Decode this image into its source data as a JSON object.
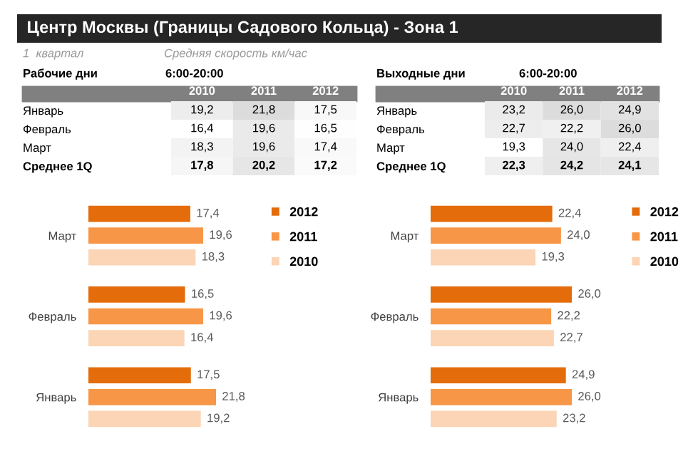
{
  "chart_data": [
    {
      "type": "other",
      "title": "Центр Москвы (Границы Садового Кольца) - Зона 1",
      "annotations": [
        "1  квартал",
        "Средняя скорость км/час"
      ]
    },
    {
      "type": "heatmap",
      "title": "Рабочие дни",
      "subtitle": "6:00-20:00",
      "categories": [
        "2010",
        "2011",
        "2012"
      ],
      "y_categories": [
        "Январь",
        "Февраль",
        "Март",
        "Среднее 1Q"
      ],
      "cells": [
        [
          19.2,
          21.8,
          17.5
        ],
        [
          16.4,
          19.6,
          16.5
        ],
        [
          18.3,
          19.6,
          17.4
        ],
        [
          17.8,
          20.2,
          17.2
        ]
      ],
      "cell_labels": [
        [
          "19,2",
          "21,8",
          "17,5"
        ],
        [
          "16,4",
          "19,6",
          "16,5"
        ],
        [
          "18,3",
          "19,6",
          "17,4"
        ],
        [
          "17,8",
          "20,2",
          "17,2"
        ]
      ]
    },
    {
      "type": "heatmap",
      "title": "Выходные дни",
      "subtitle": "6:00-20:00",
      "categories": [
        "2010",
        "2011",
        "2012"
      ],
      "y_categories": [
        "Январь",
        "Февраль",
        "Март",
        "Среднее 1Q"
      ],
      "cells": [
        [
          23.2,
          26.0,
          24.9
        ],
        [
          22.7,
          22.2,
          26.0
        ],
        [
          19.3,
          24.0,
          22.4
        ],
        [
          22.3,
          24.2,
          24.1
        ]
      ],
      "cell_labels": [
        [
          "23,2",
          "26,0",
          "24,9"
        ],
        [
          "22,7",
          "22,2",
          "26,0"
        ],
        [
          "19,3",
          "24,0",
          "22,4"
        ],
        [
          "22,3",
          "24,2",
          "24,1"
        ]
      ]
    },
    {
      "type": "bar",
      "orientation": "horizontal",
      "categories": [
        "Март",
        "Февраль",
        "Январь"
      ],
      "legend": "right",
      "series": [
        {
          "name": "2012",
          "color": "#e46c0a",
          "values": [
            17.4,
            16.5,
            17.5
          ],
          "value_labels": [
            "17,4",
            "16,5",
            "17,5"
          ]
        },
        {
          "name": "2011",
          "color": "#f79646",
          "values": [
            19.6,
            19.6,
            21.8
          ],
          "value_labels": [
            "19,6",
            "19,6",
            "21,8"
          ]
        },
        {
          "name": "2010",
          "color": "#fbd5b5",
          "values": [
            18.3,
            16.4,
            19.2
          ],
          "value_labels": [
            "18,3",
            "16,4",
            "19,2"
          ]
        }
      ]
    },
    {
      "type": "bar",
      "orientation": "horizontal",
      "categories": [
        "Март",
        "Февраль",
        "Январь"
      ],
      "legend": "right",
      "series": [
        {
          "name": "2012",
          "color": "#e46c0a",
          "values": [
            22.4,
            26.0,
            24.9
          ],
          "value_labels": [
            "22,4",
            "26,0",
            "24,9"
          ]
        },
        {
          "name": "2011",
          "color": "#f79646",
          "values": [
            24.0,
            22.2,
            26.0
          ],
          "value_labels": [
            "24,0",
            "22,2",
            "26,0"
          ]
        },
        {
          "name": "2010",
          "color": "#fbd5b5",
          "values": [
            19.3,
            22.7,
            23.2
          ],
          "value_labels": [
            "19,3",
            "22,7",
            "23,2"
          ]
        }
      ]
    }
  ]
}
